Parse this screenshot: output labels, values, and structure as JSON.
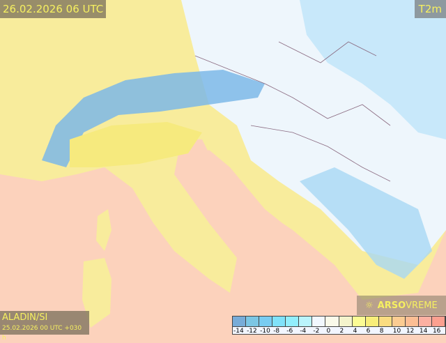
{
  "header": {
    "valid_time": "26.02.2026 06 UTC",
    "parameter": "T2m"
  },
  "footer": {
    "model": "ALADIN/SI",
    "run": "25.02.2026 00 UTC +030 h"
  },
  "logo": {
    "brand_bold": "ARSO",
    "brand_light": "VREME",
    "icon": "sun-icon"
  },
  "legend": {
    "ticks": [
      "-14",
      "-12",
      "-10",
      "-8",
      "-6",
      "-4",
      "-2",
      "0",
      "2",
      "4",
      "6",
      "8",
      "10",
      "12",
      "14",
      "16"
    ],
    "colors": [
      "#78acd8",
      "#7cc6e4",
      "#78ccf2",
      "#80e2fa",
      "#92eefc",
      "#baf4fc",
      "#f2f8ff",
      "#fafaea",
      "#f4f4cc",
      "#fcfc94",
      "#f8ee7a",
      "#fadc80",
      "#fccc92",
      "#fcbe94",
      "#fcb0a2",
      "#fca090"
    ]
  },
  "colors": {
    "sea": "#fcd2bc",
    "lowland": "#f8ec9c",
    "alps": "#7cb8e8",
    "east": "#d8eefc",
    "label_text": "#f6f060"
  }
}
